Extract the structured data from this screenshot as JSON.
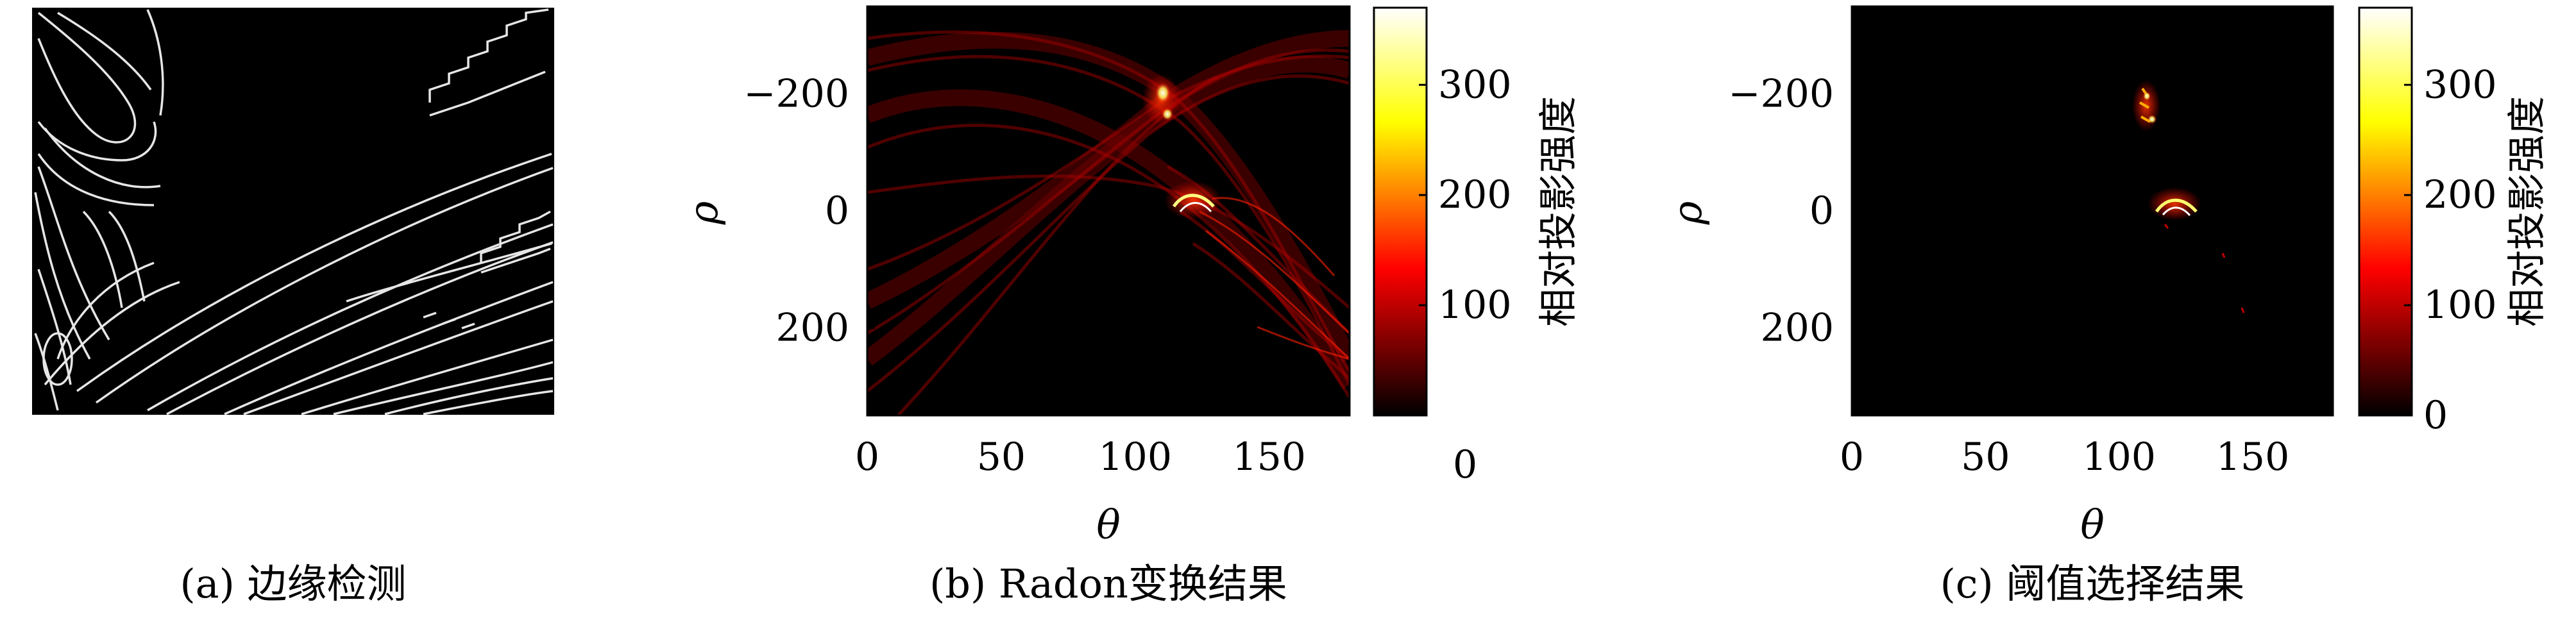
{
  "panels": [
    {
      "caption": "(a) 边缘检测"
    },
    {
      "caption": "(b) Radon变换结果",
      "xlabel": "θ",
      "ylabel": "ρ",
      "colorbar_label": "相对投影强度"
    },
    {
      "caption": "(c) 阈值选择结果",
      "xlabel": "θ",
      "ylabel": "ρ",
      "colorbar_label": "相对投影强度"
    }
  ],
  "chart_data": [
    {
      "type": "image",
      "panel": "a",
      "colormap": "gray",
      "caption": "(a) 边缘检测"
    },
    {
      "type": "heatmap",
      "panel": "b",
      "caption": "(b) Radon变换结果",
      "xlabel": "θ",
      "ylabel": "ρ",
      "xlim": [
        0,
        180
      ],
      "ylim": [
        350,
        -350
      ],
      "xticks": [
        0,
        50,
        100,
        150
      ],
      "yticks": [
        -200,
        0,
        200
      ],
      "colormap": "hot",
      "colorbar": {
        "label": "相对投影强度",
        "range": [
          0,
          370
        ],
        "ticks": [
          0,
          100,
          200,
          300
        ]
      },
      "peaks": [
        {
          "theta": 110,
          "rho": -180,
          "value": 360
        },
        {
          "theta": 121,
          "rho": -20,
          "value": 330
        }
      ]
    },
    {
      "type": "heatmap",
      "panel": "c",
      "caption": "(c) 阈值选择结果",
      "xlabel": "θ",
      "ylabel": "ρ",
      "xlim": [
        0,
        180
      ],
      "ylim": [
        350,
        -350
      ],
      "xticks": [
        0,
        50,
        100,
        150
      ],
      "yticks": [
        -200,
        0,
        200
      ],
      "colormap": "hot",
      "colorbar": {
        "label": "相对投影强度",
        "range": [
          0,
          370
        ],
        "ticks": [
          0,
          100,
          200,
          300
        ]
      },
      "peaks": [
        {
          "theta": 110,
          "rho": -180,
          "value": 360
        },
        {
          "theta": 121,
          "rho": -20,
          "value": 330
        }
      ]
    }
  ],
  "colors": {
    "background": "#ffffff",
    "image_black": "#000000",
    "edge_white": "#e6e6e6",
    "hot_dark_red": "#5a0000",
    "hot_red": "#ff0000",
    "hot_yellow": "#ffff00",
    "hot_white": "#ffffff"
  }
}
